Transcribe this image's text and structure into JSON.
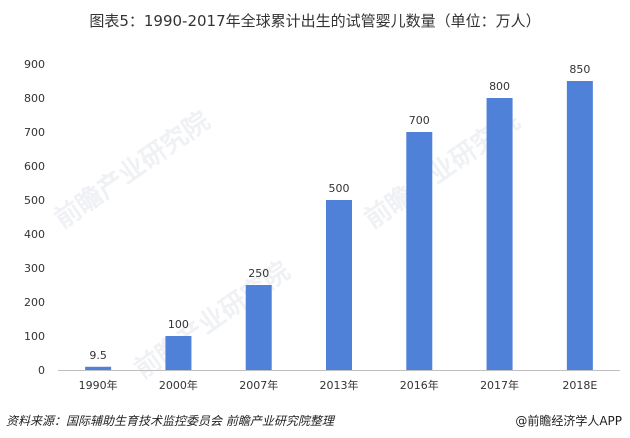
{
  "title": "图表5：1990-2017年全球累计出生的试管婴儿数量（单位：万人）",
  "footer": {
    "source": "资料来源：国际辅助生育技术监控委员会 前瞻产业研究院整理",
    "brand": "@前瞻经济学人APP"
  },
  "watermark": "前瞻产业研究院",
  "colors": {
    "bar": "#4f81d8",
    "axis": "#bfbfbf",
    "label": "#333333"
  },
  "chart_data": {
    "type": "bar",
    "title": "图表5：1990-2017年全球累计出生的试管婴儿数量（单位：万人）",
    "categories": [
      "1990年",
      "2000年",
      "2007年",
      "2013年",
      "2016年",
      "2017年",
      "2018E"
    ],
    "values": [
      9.5,
      100,
      250,
      500,
      700,
      800,
      850
    ],
    "value_labels": [
      "9.5",
      "100",
      "250",
      "500",
      "700",
      "800",
      "850"
    ],
    "ylim": [
      0,
      900
    ],
    "yticks": [
      0,
      100,
      200,
      300,
      400,
      500,
      600,
      700,
      800,
      900
    ],
    "xlabel": "",
    "ylabel": "",
    "grid": false,
    "legend": "none"
  }
}
